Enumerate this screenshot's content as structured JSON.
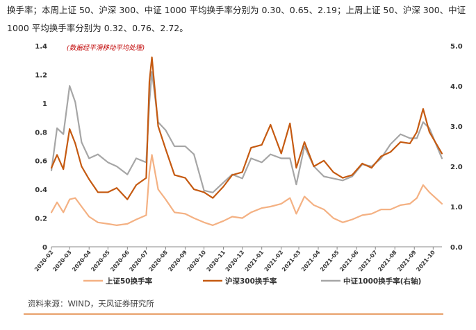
{
  "intro_text": "换手率；本周上证 50、沪深 300、中证 1000 平均换手率分别为 0.30、0.65、2.19；上周上证 50、沪深 300、中证 1000 平均换手率分别为 0.32、0.76、2.72。",
  "source_text": "资料来源：WIND，天风证券研究所",
  "chart_data": {
    "type": "line",
    "note": "(数据经平滑移动平均处理)",
    "ylim_left": [
      0,
      1.4
    ],
    "yticks_left": [
      "0",
      "0.2",
      "0.4",
      "0.6",
      "0.8",
      "1",
      "1.2",
      "1.4"
    ],
    "ylim_right": [
      0,
      5.0
    ],
    "yticks_right": [
      "0.0",
      "1.0",
      "2.0",
      "3.0",
      "4.0",
      "5.0"
    ],
    "xlim": [
      "2020-02-01",
      "2021-10-15"
    ],
    "xticks": [
      "2020-02",
      "2020-03",
      "2020-04",
      "2020-05",
      "2020-06",
      "2020-07",
      "2020-08",
      "2020-09",
      "2020-10",
      "2020-11",
      "2020-12",
      "2021-01",
      "2021-02",
      "2021-03",
      "2021-04",
      "2021-05",
      "2021-06",
      "2021-07",
      "2021-08",
      "2021-09",
      "2021-10"
    ],
    "legend_position": "bottom",
    "series": [
      {
        "name": "上证50换手率",
        "axis": "left",
        "color": "#f4b183",
        "x": [
          "2020-02-01",
          "2020-02-10",
          "2020-02-20",
          "2020-03-01",
          "2020-03-10",
          "2020-03-20",
          "2020-04-01",
          "2020-04-15",
          "2020-05-01",
          "2020-05-15",
          "2020-06-01",
          "2020-06-15",
          "2020-07-01",
          "2020-07-06",
          "2020-07-10",
          "2020-07-20",
          "2020-08-01",
          "2020-08-15",
          "2020-09-01",
          "2020-09-15",
          "2020-10-01",
          "2020-10-15",
          "2020-11-01",
          "2020-11-15",
          "2020-12-01",
          "2020-12-15",
          "2021-01-01",
          "2021-01-15",
          "2021-02-01",
          "2021-02-15",
          "2021-02-25",
          "2021-03-10",
          "2021-03-25",
          "2021-04-10",
          "2021-04-25",
          "2021-05-10",
          "2021-05-25",
          "2021-06-10",
          "2021-06-25",
          "2021-07-10",
          "2021-07-25",
          "2021-08-10",
          "2021-08-25",
          "2021-09-05",
          "2021-09-15",
          "2021-09-25",
          "2021-10-15"
        ],
        "values": [
          0.24,
          0.31,
          0.24,
          0.33,
          0.34,
          0.28,
          0.21,
          0.17,
          0.16,
          0.15,
          0.16,
          0.19,
          0.22,
          0.52,
          0.64,
          0.4,
          0.33,
          0.24,
          0.23,
          0.2,
          0.17,
          0.15,
          0.18,
          0.21,
          0.2,
          0.24,
          0.27,
          0.28,
          0.3,
          0.34,
          0.23,
          0.35,
          0.29,
          0.26,
          0.2,
          0.17,
          0.19,
          0.22,
          0.23,
          0.26,
          0.26,
          0.29,
          0.3,
          0.34,
          0.43,
          0.38,
          0.3
        ]
      },
      {
        "name": "沪深300换手率",
        "axis": "left",
        "color": "#c55a11",
        "x": [
          "2020-02-01",
          "2020-02-10",
          "2020-02-20",
          "2020-03-01",
          "2020-03-10",
          "2020-03-20",
          "2020-04-01",
          "2020-04-15",
          "2020-05-01",
          "2020-05-15",
          "2020-06-01",
          "2020-06-15",
          "2020-07-01",
          "2020-07-06",
          "2020-07-10",
          "2020-07-20",
          "2020-08-01",
          "2020-08-15",
          "2020-09-01",
          "2020-09-15",
          "2020-10-01",
          "2020-10-15",
          "2020-11-01",
          "2020-11-15",
          "2020-12-01",
          "2020-12-15",
          "2021-01-01",
          "2021-01-15",
          "2021-02-01",
          "2021-02-15",
          "2021-02-25",
          "2021-03-10",
          "2021-03-25",
          "2021-04-10",
          "2021-04-25",
          "2021-05-10",
          "2021-05-25",
          "2021-06-10",
          "2021-06-25",
          "2021-07-10",
          "2021-07-25",
          "2021-08-10",
          "2021-08-25",
          "2021-09-05",
          "2021-09-15",
          "2021-09-25",
          "2021-10-15"
        ],
        "values": [
          0.55,
          0.64,
          0.54,
          0.82,
          0.72,
          0.56,
          0.47,
          0.38,
          0.38,
          0.41,
          0.33,
          0.43,
          0.48,
          1.15,
          1.32,
          0.84,
          0.68,
          0.5,
          0.48,
          0.4,
          0.38,
          0.34,
          0.42,
          0.5,
          0.52,
          0.69,
          0.71,
          0.85,
          0.65,
          0.86,
          0.55,
          0.73,
          0.56,
          0.6,
          0.52,
          0.48,
          0.5,
          0.58,
          0.55,
          0.63,
          0.66,
          0.73,
          0.72,
          0.8,
          0.96,
          0.8,
          0.65
        ]
      },
      {
        "name": "中证1000换手率(右轴)",
        "axis": "right",
        "color": "#a6a6a6",
        "x": [
          "2020-02-01",
          "2020-02-10",
          "2020-02-20",
          "2020-03-01",
          "2020-03-10",
          "2020-03-20",
          "2020-04-01",
          "2020-04-15",
          "2020-05-01",
          "2020-05-15",
          "2020-06-01",
          "2020-06-15",
          "2020-07-01",
          "2020-07-06",
          "2020-07-10",
          "2020-07-20",
          "2020-08-01",
          "2020-08-15",
          "2020-09-01",
          "2020-09-15",
          "2020-10-01",
          "2020-10-15",
          "2020-11-01",
          "2020-11-15",
          "2020-12-01",
          "2020-12-15",
          "2021-01-01",
          "2021-01-15",
          "2021-02-01",
          "2021-02-15",
          "2021-02-25",
          "2021-03-10",
          "2021-03-25",
          "2021-04-10",
          "2021-04-25",
          "2021-05-10",
          "2021-05-25",
          "2021-06-10",
          "2021-06-25",
          "2021-07-10",
          "2021-07-25",
          "2021-08-10",
          "2021-08-25",
          "2021-09-05",
          "2021-09-15",
          "2021-09-25",
          "2021-10-15"
        ],
        "values": [
          1.9,
          2.95,
          2.8,
          4.0,
          3.6,
          2.6,
          2.2,
          2.3,
          2.1,
          2.0,
          1.8,
          2.2,
          2.1,
          3.6,
          4.35,
          3.1,
          2.9,
          2.5,
          2.5,
          2.3,
          1.4,
          1.35,
          1.6,
          1.8,
          1.7,
          2.2,
          2.1,
          2.3,
          2.2,
          2.2,
          1.55,
          2.5,
          2.0,
          1.75,
          1.7,
          1.65,
          1.75,
          2.05,
          2.0,
          2.2,
          2.55,
          2.8,
          2.7,
          2.7,
          3.1,
          2.95,
          2.2
        ]
      }
    ]
  }
}
